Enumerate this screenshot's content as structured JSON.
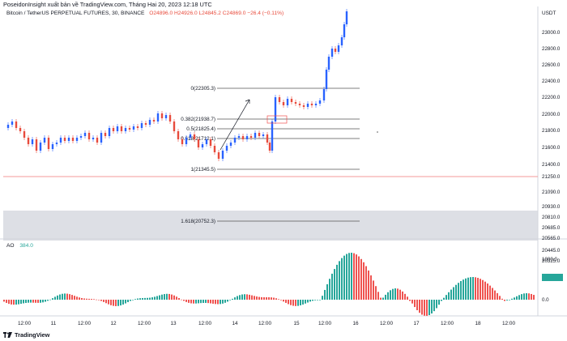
{
  "header": {
    "published": "PoseidonInsight xuất bản về TradingView.com, Tháng Hai 20, 2023 12:18 UTC"
  },
  "legend": {
    "symbol": "Bitcoin / TetherUS PERPETUAL FUTURES, 30, BINANCE",
    "ohlc": "O24896.0  H24926.0  L24845.2  C24869.0  −26.4 (−0.11%)"
  },
  "price_axis": {
    "unit": "USDT",
    "ticks": [
      "23000.0",
      "22800.0",
      "22600.0",
      "22400.0",
      "22200.0",
      "22000.0",
      "21800.0",
      "21600.0",
      "21400.0",
      "21250.0",
      "21090.0",
      "20930.0",
      "20810.0",
      "20685.0",
      "20565.0",
      "20445.0",
      "20325.0"
    ]
  },
  "fib_levels": [
    {
      "label": "0(22305.3)",
      "price": 22305.3
    },
    {
      "label": "0.382(21938.7)",
      "price": 21938.7
    },
    {
      "label": "0.5(21825.4)",
      "price": 21825.4
    },
    {
      "label": "0.618(21712.1)",
      "price": 21712.1
    },
    {
      "label": "1(21345.5)",
      "price": 21345.5
    },
    {
      "label": "1.618(20752.3)",
      "price": 20752.3
    }
  ],
  "ao": {
    "name": "AO",
    "value": "384.0",
    "ticks": [
      "1000.0",
      "0.0"
    ]
  },
  "time_axis": {
    "labels": [
      "12:00",
      "11",
      "12:00",
      "12",
      "12:00",
      "13",
      "12:00",
      "14",
      "12:00",
      "15",
      "12:00",
      "16",
      "12:00",
      "17",
      "12:00",
      "18",
      "12:00"
    ]
  },
  "footer": {
    "brand": "TradingView"
  },
  "colors": {
    "up": "#26a69a",
    "down": "#ef5350",
    "candle_up": "#2962ff",
    "candle_down": "#e84b3c",
    "fib_line": "#555555",
    "support_zone": "#d1d4dc",
    "red_line": "#f7a1a1"
  }
}
